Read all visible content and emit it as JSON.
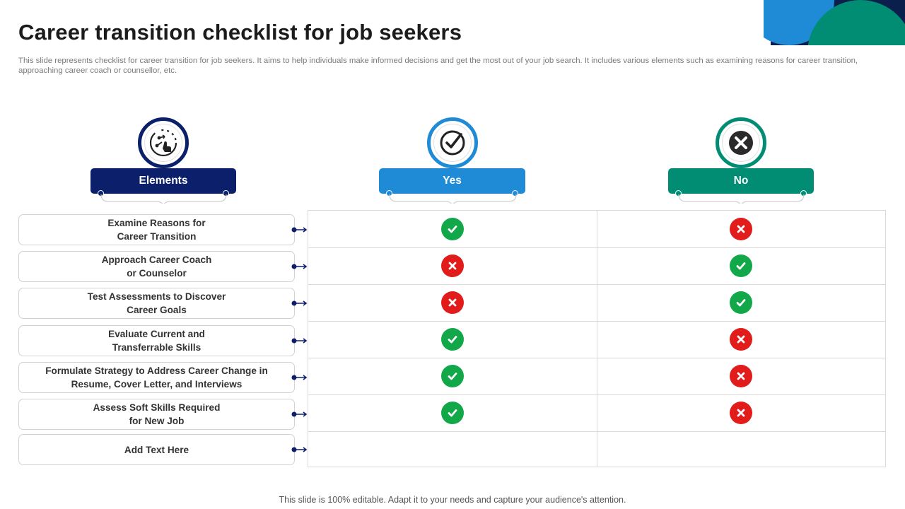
{
  "title": "Career transition checklist for job seekers",
  "subtitle": "This slide represents checklist for career transition for job seekers. It aims to help individuals make informed decisions and get the most out of your job search. It includes various elements such as examining reasons for career transition, approaching career coach or counsellor, etc.",
  "columns": {
    "elements": "Elements",
    "yes": "Yes",
    "no": "No"
  },
  "icons": {
    "elements": "strategy-hand-icon",
    "yes": "checkmark-icon",
    "no": "cross-icon"
  },
  "colors": {
    "navy": "#0b1f6b",
    "blue": "#1f8ad6",
    "teal": "#008d74",
    "check_green": "#12a84a",
    "cross_red": "#e21b1b"
  },
  "rows": [
    {
      "label": "Examine Reasons for\nCareer Transition",
      "yes": "check",
      "no": "cross"
    },
    {
      "label": "Approach Career Coach\nor Counselor",
      "yes": "cross",
      "no": "check"
    },
    {
      "label": "Test Assessments to Discover\nCareer Goals",
      "yes": "cross",
      "no": "check"
    },
    {
      "label": "Evaluate Current and\nTransferrable Skills",
      "yes": "check",
      "no": "cross"
    },
    {
      "label": "Formulate Strategy  to Address Career Change in\nResume, Cover Letter, and Interviews",
      "yes": "check",
      "no": "cross"
    },
    {
      "label": "Assess Soft Skills Required\nfor New Job",
      "yes": "check",
      "no": "cross"
    },
    {
      "label": "Add Text Here",
      "yes": "",
      "no": ""
    }
  ],
  "footer": "This slide is 100% editable. Adapt it to your needs and capture your audience's attention."
}
